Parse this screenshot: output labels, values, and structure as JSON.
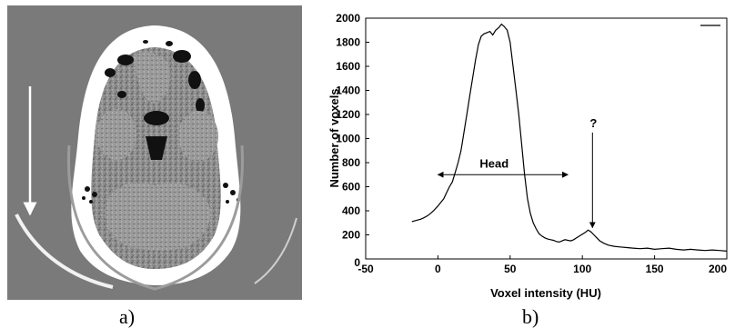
{
  "panels": {
    "a_label": "a)",
    "b_label": "b)"
  },
  "colors": {
    "scan_background": "#7a7a7a",
    "line": "#000000"
  },
  "chart_data": {
    "type": "line",
    "title": "",
    "xlabel": "Voxel intensity (HU)",
    "ylabel": "Number of voxels",
    "xlim": [
      -50,
      200
    ],
    "ylim": [
      0,
      2000
    ],
    "x_ticks": [
      -50,
      0,
      50,
      100,
      150,
      200
    ],
    "y_ticks": [
      0,
      200,
      400,
      600,
      800,
      1000,
      1200,
      1400,
      1600,
      1800,
      2000
    ],
    "x_tick_labels": [
      "-50",
      "0",
      "50",
      "100",
      "150",
      "200"
    ],
    "y_tick_labels": [
      "0",
      "200",
      "400",
      "600",
      "800",
      "1000",
      "1200",
      "1400",
      "1600",
      "1800",
      "2000"
    ],
    "grid": false,
    "legend": "top-right (unlabeled line sample)",
    "series": [
      {
        "x": [
          -18,
          -15,
          -12,
          -10,
          -7,
          -5,
          -3,
          0,
          2,
          4,
          6,
          8,
          10,
          12,
          14,
          16,
          18,
          20,
          22,
          24,
          26,
          28,
          30,
          32,
          34,
          36,
          38,
          40,
          42,
          44,
          46,
          48,
          50,
          52,
          54,
          56,
          58,
          60,
          62,
          64,
          66,
          68,
          70,
          72,
          74,
          76,
          78,
          80,
          82,
          84,
          86,
          88,
          90,
          92,
          94,
          96,
          98,
          100,
          102,
          104,
          106,
          108,
          110,
          112,
          115,
          118,
          122,
          126,
          130,
          135,
          140,
          145,
          150,
          155,
          160,
          165,
          170,
          175,
          180,
          185,
          190,
          195,
          200
        ],
        "y": [
          310,
          320,
          330,
          340,
          360,
          380,
          400,
          440,
          470,
          500,
          550,
          600,
          640,
          720,
          800,
          900,
          1050,
          1200,
          1350,
          1500,
          1650,
          1780,
          1850,
          1870,
          1880,
          1890,
          1860,
          1900,
          1920,
          1950,
          1930,
          1900,
          1800,
          1600,
          1400,
          1200,
          950,
          700,
          500,
          380,
          300,
          250,
          210,
          190,
          175,
          165,
          160,
          155,
          145,
          140,
          150,
          160,
          155,
          150,
          160,
          175,
          190,
          205,
          220,
          240,
          225,
          200,
          175,
          150,
          130,
          115,
          105,
          100,
          95,
          90,
          85,
          90,
          80,
          85,
          90,
          80,
          75,
          80,
          75,
          70,
          75,
          70,
          65
        ]
      }
    ],
    "annotations": [
      {
        "text": "Head",
        "type": "double-arrow",
        "x_from": 0,
        "x_to": 90,
        "y": 700
      },
      {
        "text": "?",
        "type": "arrow-down",
        "x": 107,
        "y_from": 1050,
        "y_to": 260
      }
    ]
  }
}
